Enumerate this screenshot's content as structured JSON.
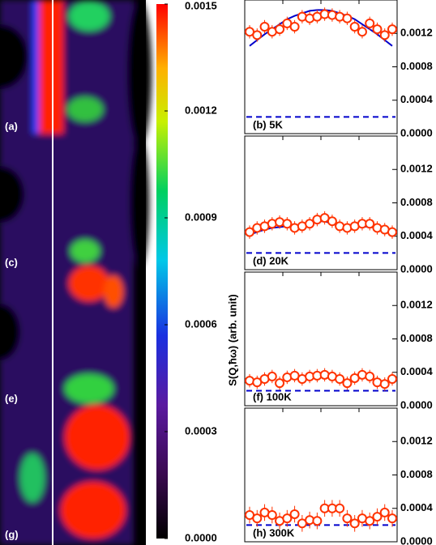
{
  "heatmap_labels": [
    "(a)",
    "(c)",
    "(e)",
    "(g)"
  ],
  "ylabel": "S(Q,ħω) (arb. unit)",
  "chart_data": [
    {
      "type": "colorbar",
      "ylim": [
        0,
        0.0015
      ],
      "yticks": [
        {
          "value": 0,
          "label": "0.0000"
        },
        0.0003,
        0.0006,
        0.0009,
        0.0012,
        0.0015
      ]
    },
    {
      "type": "panel",
      "label": "(b)  5K",
      "ylim": [
        0,
        0.0016
      ],
      "yticks": [
        {
          "value": 0,
          "label": "0.0000"
        },
        0.0004,
        0.0008,
        0.0012
      ],
      "values": [
        0.00122,
        0.00118,
        0.00128,
        0.00122,
        0.00125,
        0.00132,
        0.00128,
        0.0014,
        0.00138,
        0.0014,
        0.00143,
        0.00142,
        0.0014,
        0.00138,
        0.00128,
        0.00122,
        0.00132,
        0.00125,
        0.00118,
        0.00125
      ],
      "error": 8e-05,
      "fit": [
        0.00105,
        0.00112,
        0.00119,
        0.00125,
        0.00131,
        0.00137,
        0.00141,
        0.00144,
        0.00147,
        0.00148,
        0.00148,
        0.00147,
        0.00144,
        0.00141,
        0.00137,
        0.00131,
        0.00125,
        0.00119,
        0.00112,
        0.00105
      ],
      "baseline": 0.0002,
      "color": "#ff3300",
      "fit_color": "#0000cc"
    },
    {
      "type": "panel",
      "label": "(d)  20K",
      "ylim": [
        0,
        0.0016
      ],
      "yticks": [
        {
          "value": 0,
          "label": "0.0000"
        },
        0.0004,
        0.0008,
        0.0012
      ],
      "values": [
        0.00045,
        0.0005,
        0.00052,
        0.00055,
        0.00057,
        0.00055,
        0.0005,
        0.00052,
        0.00055,
        0.0006,
        0.00062,
        0.00058,
        0.00052,
        0.0005,
        0.00052,
        0.00055,
        0.00055,
        0.0005,
        0.00048,
        0.00045
      ],
      "error": 8e-05,
      "fit": [
        0.00042,
        0.00045,
        0.00048,
        0.0005,
        0.00051,
        0.00052,
        0.00052,
        0.00053,
        0.00055,
        0.00058,
        0.00058,
        0.00055,
        0.00052,
        0.00051,
        0.00052,
        0.00052,
        0.00051,
        0.0005,
        0.00047,
        0.00043
      ],
      "baseline": 0.0002,
      "color": "#ff3300",
      "fit_color": "#0000cc"
    },
    {
      "type": "panel",
      "label": "(f) 100K",
      "ylim": [
        0,
        0.0016
      ],
      "yticks": [
        {
          "value": 0,
          "label": "0.0000"
        },
        0.0004,
        0.0008,
        0.0012
      ],
      "values": [
        0.0003,
        0.00028,
        0.00032,
        0.00035,
        0.00027,
        0.00034,
        0.00036,
        0.00032,
        0.00035,
        0.00036,
        0.00037,
        0.00035,
        0.00032,
        0.00027,
        0.00033,
        0.00037,
        0.00035,
        0.00028,
        0.00026,
        0.00032
      ],
      "error": 8e-05,
      "baseline": 0.00018,
      "color": "#ff3300",
      "fit_color": "#0000cc"
    },
    {
      "type": "panel",
      "label": "(h) 300K",
      "ylim": [
        0,
        0.0016
      ],
      "yticks": [
        {
          "value": 0,
          "label": "0.0000"
        },
        0.0004,
        0.0008,
        0.0012
      ],
      "values": [
        0.00032,
        0.00028,
        0.00035,
        0.00032,
        0.00025,
        0.00028,
        0.00033,
        0.00022,
        0.00026,
        0.00025,
        0.0004,
        0.0004,
        0.0004,
        0.00028,
        0.00022,
        0.00028,
        0.00025,
        0.0003,
        0.00035,
        0.00028
      ],
      "error": 0.0001,
      "baseline": 0.0002,
      "color": "#ff3300",
      "fit_color": "#0000cc"
    }
  ]
}
